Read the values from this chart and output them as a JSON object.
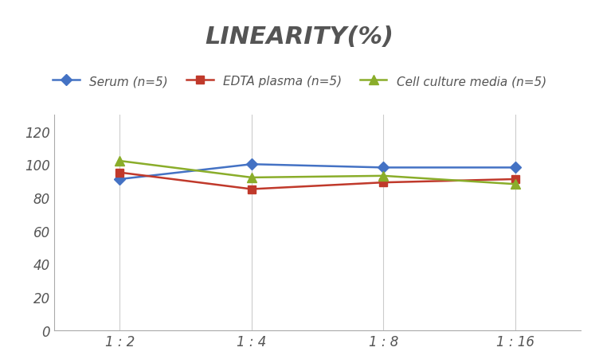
{
  "title": "LINEARITY(%)",
  "x_labels": [
    "1 : 2",
    "1 : 4",
    "1 : 8",
    "1 : 16"
  ],
  "x_positions": [
    0,
    1,
    2,
    3
  ],
  "series": [
    {
      "label": "Serum (n=5)",
      "values": [
        91,
        100,
        98,
        98
      ],
      "color": "#4472C4",
      "marker": "D",
      "markersize": 7,
      "linewidth": 1.8
    },
    {
      "label": "EDTA plasma (n=5)",
      "values": [
        95,
        85,
        89,
        91
      ],
      "color": "#C0392B",
      "marker": "s",
      "markersize": 7,
      "linewidth": 1.8
    },
    {
      "label": "Cell culture media (n=5)",
      "values": [
        102,
        92,
        93,
        88
      ],
      "color": "#8AAD2A",
      "marker": "^",
      "markersize": 9,
      "linewidth": 1.8
    }
  ],
  "ylim": [
    0,
    130
  ],
  "yticks": [
    0,
    20,
    40,
    60,
    80,
    100,
    120
  ],
  "background_color": "#ffffff",
  "grid_color": "#cccccc",
  "title_fontsize": 22,
  "legend_fontsize": 11,
  "tick_fontsize": 12
}
